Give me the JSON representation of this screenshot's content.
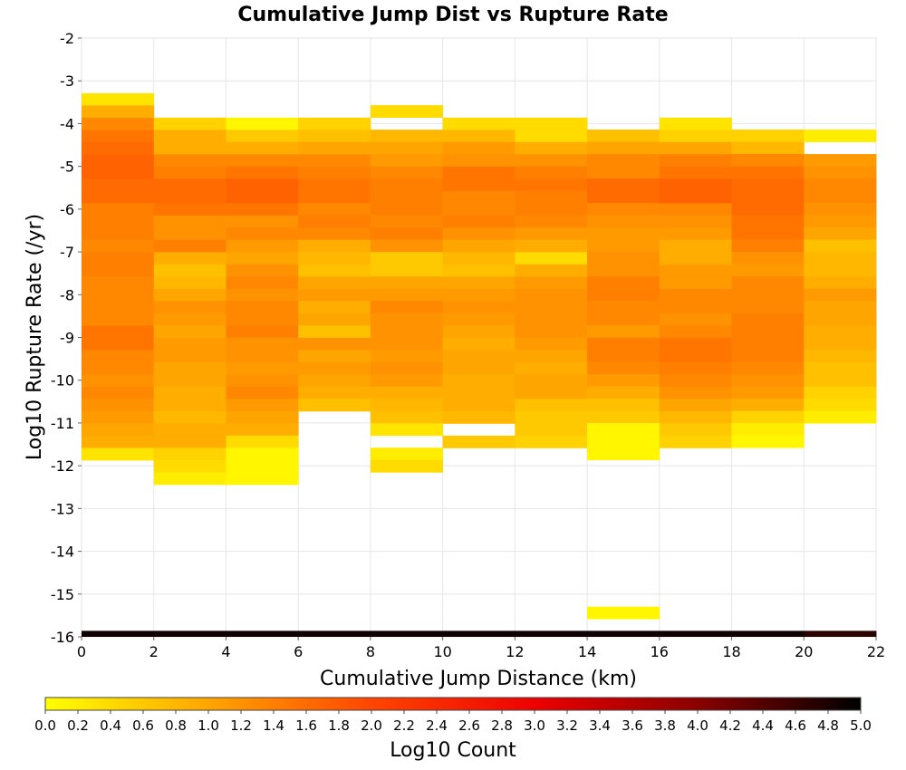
{
  "chart_data": {
    "type": "heatmap",
    "title": "Cumulative Jump Dist vs Rupture Rate",
    "xlabel": "Cumulative Jump Distance (km)",
    "ylabel": "Log10 Rupture Rate (/yr)",
    "colorbar_label": "Log10 Count",
    "xlim": [
      0,
      22
    ],
    "ylim": [
      -16,
      -2
    ],
    "x_ticks": [
      "0",
      "2",
      "4",
      "6",
      "8",
      "10",
      "12",
      "14",
      "16",
      "18",
      "20",
      "22"
    ],
    "y_ticks": [
      "-2",
      "-3",
      "-4",
      "-5",
      "-6",
      "-7",
      "-8",
      "-9",
      "-10",
      "-11",
      "-12",
      "-13",
      "-14",
      "-15",
      "-16"
    ],
    "colorbar_ticks": [
      "0.0",
      "0.2",
      "0.4",
      "0.6",
      "0.8",
      "1.0",
      "1.2",
      "1.4",
      "1.6",
      "1.8",
      "2.0",
      "2.2",
      "2.4",
      "2.6",
      "2.8",
      "3.0",
      "3.2",
      "3.4",
      "3.6",
      "3.8",
      "4.0",
      "4.2",
      "4.4",
      "4.6",
      "4.8",
      "5.0"
    ],
    "zlim": [
      0,
      5
    ],
    "colormap": [
      "#ffff00",
      "#ffa500",
      "#ff4500",
      "#ee0000",
      "#8b0000",
      "#000000"
    ],
    "grid": true,
    "x_bin_width": 2,
    "y_bin_width": 0.286,
    "columns": [
      {
        "x": 0,
        "y_top": -3.29,
        "values": [
          0.3,
          0.9,
          1.3,
          1.5,
          1.6,
          1.7,
          1.7,
          1.6,
          1.6,
          1.4,
          1.4,
          1.4,
          1.3,
          1.4,
          1.4,
          1.3,
          1.3,
          1.3,
          1.3,
          1.5,
          1.5,
          1.3,
          1.3,
          1.2,
          1.3,
          1.2,
          1.1,
          1.0,
          0.9,
          0.3
        ]
      },
      {
        "x": 2,
        "y_top": -3.86,
        "values": [
          0.5,
          0.9,
          0.9,
          1.3,
          1.4,
          1.6,
          1.6,
          1.5,
          1.2,
          1.2,
          1.4,
          0.9,
          0.7,
          0.8,
          1.0,
          1.2,
          1.1,
          1.0,
          1.1,
          1.1,
          1.0,
          1.0,
          0.9,
          0.9,
          0.8,
          0.9,
          0.9,
          0.5,
          0.4,
          0.2
        ]
      },
      {
        "x": 4,
        "y_top": -3.86,
        "values": [
          0.1,
          0.6,
          0.9,
          1.3,
          1.5,
          1.7,
          1.7,
          1.5,
          1.2,
          1.3,
          1.1,
          1.0,
          1.2,
          1.3,
          1.2,
          1.3,
          1.3,
          1.4,
          1.2,
          1.2,
          1.1,
          1.2,
          1.3,
          1.1,
          1.0,
          0.9,
          0.4,
          0.1,
          0.1,
          0.1
        ]
      },
      {
        "x": 6,
        "y_top": -3.86,
        "values": [
          0.5,
          0.7,
          1.0,
          1.3,
          1.4,
          1.5,
          1.5,
          1.3,
          1.4,
          1.3,
          0.9,
          0.8,
          0.7,
          1.0,
          1.1,
          0.9,
          1.0,
          0.7,
          1.2,
          1.0,
          1.1,
          1.0,
          0.9,
          0.7
        ]
      },
      {
        "x": 8,
        "y_top": -3.57,
        "values": [
          0.4,
          null,
          0.8,
          1.0,
          1.1,
          1.3,
          1.4,
          1.4,
          1.4,
          1.3,
          1.4,
          1.2,
          0.6,
          0.6,
          1.0,
          1.1,
          1.3,
          1.2,
          1.2,
          1.2,
          1.1,
          1.2,
          1.1,
          0.9,
          0.8,
          0.7,
          0.3,
          null,
          0.2,
          0.4
        ]
      },
      {
        "x": 10,
        "y_top": -3.86,
        "values": [
          0.4,
          0.8,
          1.1,
          1.2,
          1.5,
          1.5,
          1.3,
          1.3,
          1.4,
          1.2,
          1.0,
          0.8,
          0.7,
          1.0,
          1.1,
          1.2,
          1.1,
          1.0,
          0.9,
          1.0,
          1.0,
          0.9,
          0.9,
          0.9,
          0.8,
          null,
          0.6
        ]
      },
      {
        "x": 12,
        "y_top": -3.86,
        "values": [
          0.4,
          0.4,
          0.9,
          1.2,
          1.4,
          1.5,
          1.4,
          1.4,
          1.3,
          1.1,
          0.9,
          0.4,
          0.9,
          1.1,
          1.2,
          1.2,
          1.2,
          1.2,
          1.1,
          1.0,
          0.9,
          1.0,
          1.0,
          0.7,
          0.6,
          0.6,
          0.5
        ]
      },
      {
        "x": 14,
        "y_top": -4.14,
        "values": [
          0.7,
          1.0,
          1.3,
          1.3,
          1.6,
          1.6,
          1.3,
          1.2,
          1.1,
          1.1,
          1.2,
          1.2,
          1.4,
          1.4,
          1.3,
          1.3,
          1.1,
          1.4,
          1.4,
          1.3,
          1.1,
          0.9,
          0.7,
          0.6,
          0.1,
          0.1,
          0.1,
          null,
          null,
          null,
          null,
          null,
          null,
          null,
          null,
          null,
          null,
          null,
          null,
          0.1
        ]
      },
      {
        "x": 16,
        "y_top": -3.86,
        "values": [
          0.3,
          0.5,
          1.0,
          1.4,
          1.5,
          1.7,
          1.7,
          1.3,
          1.2,
          1.1,
          0.9,
          0.9,
          1.1,
          1.1,
          1.3,
          1.3,
          1.2,
          1.3,
          1.5,
          1.5,
          1.4,
          1.3,
          1.2,
          1.0,
          0.8,
          0.6,
          0.5
        ]
      },
      {
        "x": 18,
        "y_top": -4.14,
        "values": [
          0.5,
          0.8,
          1.3,
          1.5,
          1.6,
          1.6,
          1.6,
          1.5,
          1.5,
          1.4,
          1.2,
          1.1,
          1.3,
          1.3,
          1.3,
          1.4,
          1.4,
          1.4,
          1.4,
          1.3,
          1.2,
          1.1,
          0.9,
          0.5,
          0.2,
          0.1
        ]
      },
      {
        "x": 20,
        "y_top": -4.14,
        "values": [
          0.2,
          null,
          1.1,
          1.2,
          1.3,
          1.3,
          1.2,
          1.1,
          1.0,
          0.7,
          0.8,
          0.8,
          0.9,
          1.1,
          1.0,
          1.0,
          0.9,
          0.9,
          0.8,
          0.7,
          0.7,
          0.5,
          0.4,
          0.2
        ]
      }
    ],
    "bottom_row": {
      "y": -15.86,
      "values": [
        4.9,
        4.9,
        4.9,
        4.9,
        4.9,
        4.9,
        4.9,
        4.9,
        4.9,
        4.9,
        4.7
      ]
    }
  }
}
